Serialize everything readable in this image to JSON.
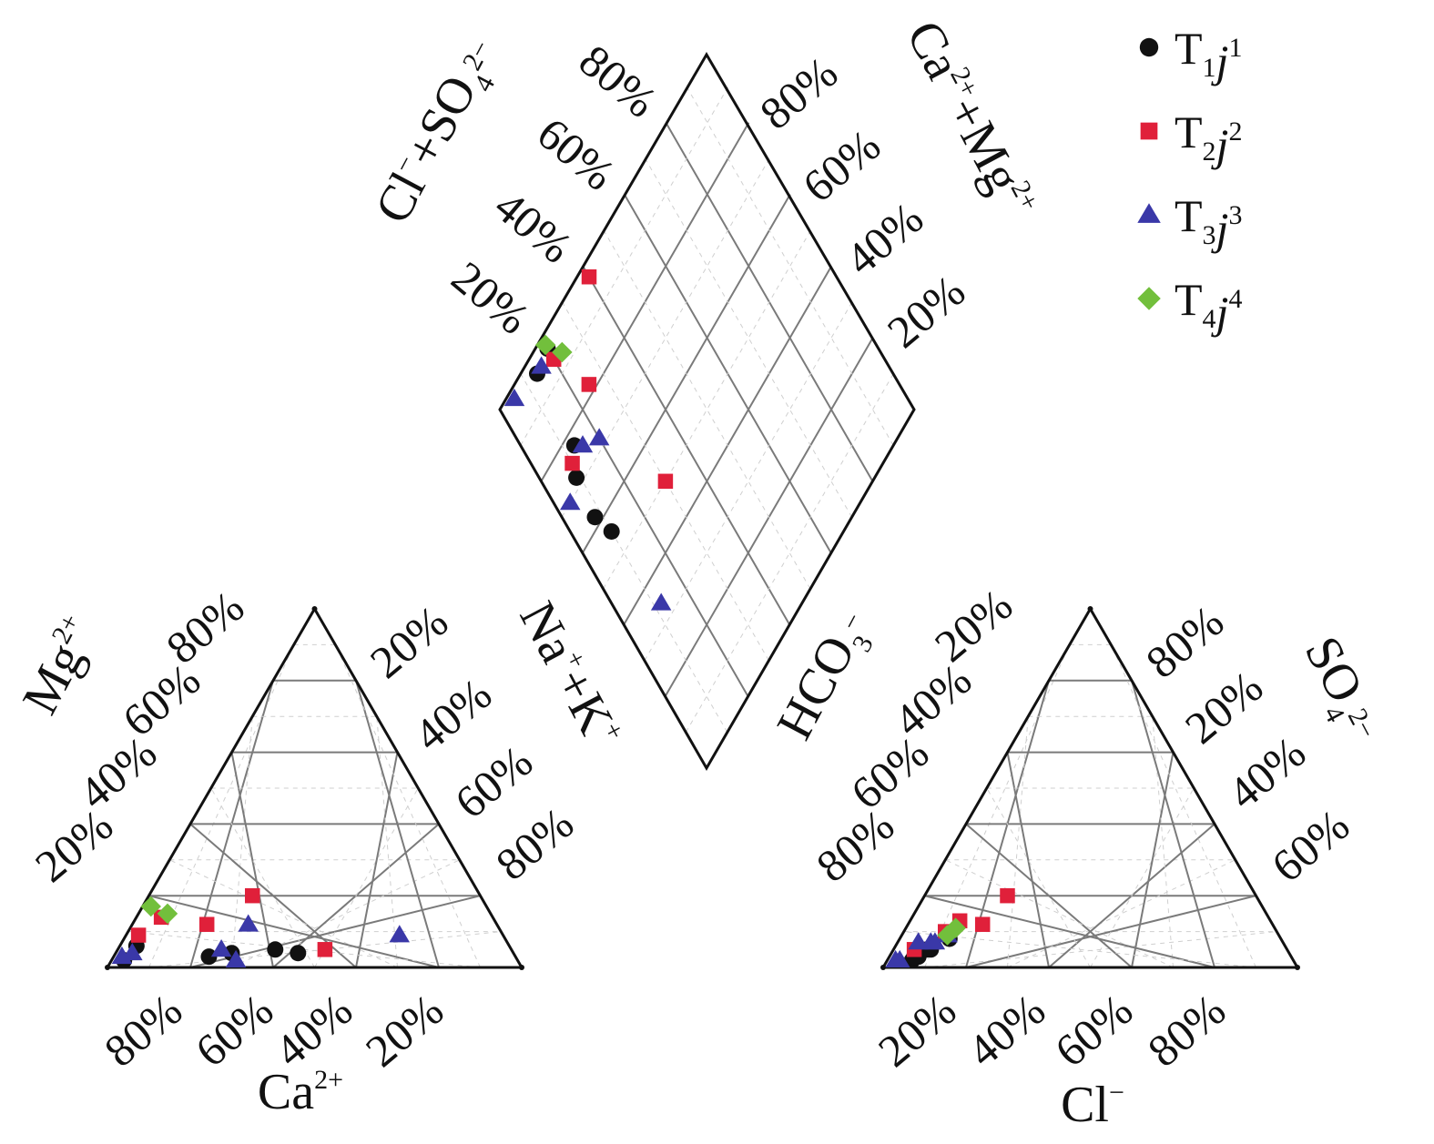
{
  "chart_data": {
    "type": "scatter",
    "subtype": "piper",
    "colors": {
      "T1j1": "#111111",
      "T2j2": "#e0203a",
      "T3j3": "#3a38a8",
      "T4j4": "#72bf3c"
    },
    "legend": {
      "placement": "top-right",
      "entries": [
        {
          "key": "T1j1",
          "base": "T",
          "sub": "1",
          "var": "j",
          "sup": "1",
          "marker": "circle"
        },
        {
          "key": "T2j2",
          "base": "T",
          "sub": "2",
          "var": "j",
          "sup": "2",
          "marker": "square"
        },
        {
          "key": "T3j3",
          "base": "T",
          "sub": "3",
          "var": "j",
          "sup": "3",
          "marker": "triangle"
        },
        {
          "key": "T4j4",
          "base": "T",
          "sub": "4",
          "var": "j",
          "sup": "4",
          "marker": "diamond"
        }
      ]
    },
    "cation_triangle": {
      "axis_labels": {
        "ca": {
          "base": "Ca",
          "sup": "2+"
        },
        "mg": {
          "base": "Mg",
          "sup": "2+"
        },
        "nak": {
          "a": "Na",
          "asup": "+",
          "b": "+K",
          "bsup": "+"
        }
      },
      "ticks": {
        "ca": [
          "80%",
          "60%",
          "40%",
          "20%"
        ],
        "mg": [
          "20%",
          "40%",
          "60%",
          "80%"
        ],
        "nak": [
          "20%",
          "40%",
          "60%",
          "80%"
        ]
      }
    },
    "anion_triangle": {
      "axis_labels": {
        "cl": {
          "base": "Cl",
          "sup": "−"
        },
        "hco3": {
          "base": "HCO",
          "sub": "3",
          "sup": "−"
        },
        "so4": {
          "base": "SO",
          "sub": "4",
          "sup": "2−"
        }
      },
      "ticks": {
        "cl": [
          "20%",
          "40%",
          "60%",
          "80%"
        ],
        "hco3": [
          "20%",
          "40%",
          "60%",
          "80%"
        ],
        "so4": [
          "80%",
          "20%",
          "40%",
          "60%"
        ]
      }
    },
    "diamond": {
      "axis_labels": {
        "left": {
          "a": "Cl",
          "asup": "−",
          "b": "+SO",
          "bsub": "4",
          "bsup": "2−"
        },
        "right": {
          "a": "Ca",
          "asup": "2+",
          "b": "+Mg",
          "bsup": "2+"
        }
      },
      "ticks": {
        "left": [
          "20%",
          "40%",
          "60%",
          "80%"
        ],
        "right": [
          "20%",
          "40%",
          "60%",
          "80%"
        ]
      }
    },
    "series": [
      {
        "key": "T1j1",
        "samples": [
          {
            "ca": 52,
            "mg": 4,
            "nak": 44,
            "hco3": 90,
            "cl": 7,
            "so4": 3
          },
          {
            "ca": 57,
            "mg": 5,
            "nak": 38,
            "hco3": 92,
            "cl": 6,
            "so4": 2
          },
          {
            "ca": 90,
            "mg": 6,
            "nak": 4,
            "hco3": 86,
            "cl": 9,
            "so4": 5
          },
          {
            "ca": 95,
            "mg": 2,
            "nak": 3,
            "hco3": 80,
            "cl": 12,
            "so4": 8
          },
          {
            "ca": 68,
            "mg": 4,
            "nak": 28,
            "hco3": 91,
            "cl": 6,
            "so4": 3
          },
          {
            "ca": 74,
            "mg": 3,
            "nak": 23,
            "hco3": 87,
            "cl": 8,
            "so4": 5
          }
        ]
      },
      {
        "key": "T2j2",
        "samples": [
          {
            "ca": 45,
            "mg": 5,
            "nak": 50,
            "hco3": 70,
            "cl": 18,
            "so4": 12
          },
          {
            "ca": 70,
            "mg": 12,
            "nak": 18,
            "hco3": 75,
            "cl": 12,
            "so4": 13
          },
          {
            "ca": 88,
            "mg": 9,
            "nak": 3,
            "hco3": 60,
            "cl": 20,
            "so4": 20
          },
          {
            "ca": 55,
            "mg": 20,
            "nak": 25,
            "hco3": 90,
            "cl": 5,
            "so4": 5
          },
          {
            "ca": 80,
            "mg": 14,
            "nak": 6,
            "hco3": 80,
            "cl": 10,
            "so4": 10
          }
        ]
      },
      {
        "key": "T3j3",
        "samples": [
          {
            "ca": 95,
            "mg": 3,
            "nak": 2,
            "hco3": 95,
            "cl": 3,
            "so4": 2
          },
          {
            "ca": 70,
            "mg": 5,
            "nak": 25,
            "hco3": 85,
            "cl": 8,
            "so4": 7
          },
          {
            "ca": 60,
            "mg": 12,
            "nak": 28,
            "hco3": 80,
            "cl": 11,
            "so4": 9
          },
          {
            "ca": 68,
            "mg": 2,
            "nak": 30,
            "hco3": 96,
            "cl": 2,
            "so4": 2
          },
          {
            "ca": 25,
            "mg": 9,
            "nak": 66,
            "hco3": 88,
            "cl": 5,
            "so4": 7
          },
          {
            "ca": 92,
            "mg": 4,
            "nak": 4,
            "hco3": 84,
            "cl": 9,
            "so4": 7
          }
        ]
      },
      {
        "key": "T4j4",
        "samples": [
          {
            "ca": 78,
            "mg": 15,
            "nak": 7,
            "hco3": 77,
            "cl": 12,
            "so4": 11
          },
          {
            "ca": 81,
            "mg": 17,
            "nak": 2,
            "hco3": 80,
            "cl": 11,
            "so4": 9
          }
        ]
      }
    ]
  }
}
